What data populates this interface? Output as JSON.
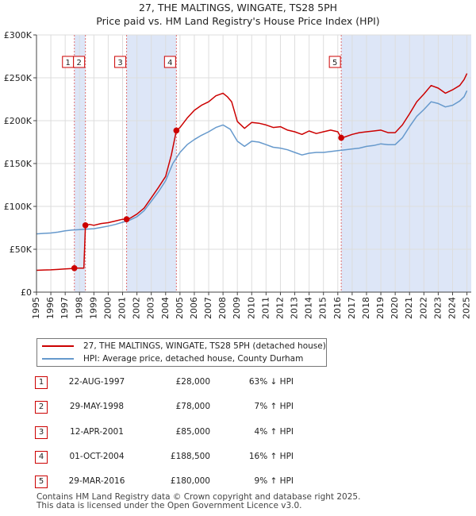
{
  "chart_data": {
    "type": "line",
    "title": "27, THE MALTINGS, WINGATE, TS28 5PH",
    "subtitle": "Price paid vs. HM Land Registry's House Price Index (HPI)",
    "xlim": [
      1995,
      2025.3
    ],
    "ylim": [
      0,
      300000
    ],
    "y_ticks": [
      0,
      50000,
      100000,
      150000,
      200000,
      250000,
      300000
    ],
    "y_tick_labels": [
      "£0",
      "£50K",
      "£100K",
      "£150K",
      "£200K",
      "£250K",
      "£300K"
    ],
    "x_ticks": [
      1995,
      1996,
      1997,
      1998,
      1999,
      2000,
      2001,
      2002,
      2003,
      2004,
      2005,
      2006,
      2007,
      2008,
      2009,
      2010,
      2011,
      2012,
      2013,
      2014,
      2015,
      2016,
      2017,
      2018,
      2019,
      2020,
      2021,
      2022,
      2023,
      2024,
      2025
    ],
    "x_tick_labels": [
      "1995",
      "1996",
      "1997",
      "1998",
      "1999",
      "2000",
      "2001",
      "2002",
      "2003",
      "2004",
      "2005",
      "2006",
      "2007",
      "2008",
      "2009",
      "2010",
      "2011",
      "2012",
      "2013",
      "2014",
      "2015",
      "2016",
      "2017",
      "2018",
      "2019",
      "2020",
      "2021",
      "2022",
      "2023",
      "2024",
      "2025"
    ],
    "grid": true,
    "series": [
      {
        "name": "27, THE MALTINGS, WINGATE, TS28 5PH (detached house)",
        "color": "#cc0000",
        "points": [
          [
            1995.0,
            25500
          ],
          [
            1995.5,
            25800
          ],
          [
            1996.0,
            26000
          ],
          [
            1996.5,
            26500
          ],
          [
            1997.0,
            27000
          ],
          [
            1997.5,
            27500
          ],
          [
            1997.64,
            28000
          ],
          [
            1998.0,
            28000
          ],
          [
            1998.3,
            28000
          ],
          [
            1998.41,
            78000
          ],
          [
            1998.7,
            79000
          ],
          [
            1999.0,
            78000
          ],
          [
            1999.5,
            80000
          ],
          [
            2000.0,
            81000
          ],
          [
            2000.5,
            83000
          ],
          [
            2001.0,
            85000
          ],
          [
            2001.28,
            85000
          ],
          [
            2001.5,
            86000
          ],
          [
            2002.0,
            91000
          ],
          [
            2002.5,
            98000
          ],
          [
            2003.0,
            110000
          ],
          [
            2003.5,
            122000
          ],
          [
            2004.0,
            135000
          ],
          [
            2004.4,
            160000
          ],
          [
            2004.75,
            188500
          ],
          [
            2005.0,
            192000
          ],
          [
            2005.5,
            203000
          ],
          [
            2006.0,
            212000
          ],
          [
            2006.5,
            218000
          ],
          [
            2007.0,
            222000
          ],
          [
            2007.5,
            229000
          ],
          [
            2008.0,
            232000
          ],
          [
            2008.3,
            228000
          ],
          [
            2008.6,
            222000
          ],
          [
            2009.0,
            199000
          ],
          [
            2009.5,
            191000
          ],
          [
            2010.0,
            198000
          ],
          [
            2010.5,
            197000
          ],
          [
            2011.0,
            195000
          ],
          [
            2011.5,
            192000
          ],
          [
            2012.0,
            193000
          ],
          [
            2012.5,
            189000
          ],
          [
            2013.0,
            187000
          ],
          [
            2013.5,
            184000
          ],
          [
            2014.0,
            188000
          ],
          [
            2014.5,
            185000
          ],
          [
            2015.0,
            187000
          ],
          [
            2015.5,
            189000
          ],
          [
            2016.0,
            187000
          ],
          [
            2016.24,
            180000
          ],
          [
            2016.5,
            181000
          ],
          [
            2017.0,
            184000
          ],
          [
            2017.5,
            186000
          ],
          [
            2018.0,
            187000
          ],
          [
            2018.5,
            188000
          ],
          [
            2019.0,
            189000
          ],
          [
            2019.5,
            186000
          ],
          [
            2020.0,
            186000
          ],
          [
            2020.5,
            195000
          ],
          [
            2021.0,
            208000
          ],
          [
            2021.5,
            222000
          ],
          [
            2022.0,
            231000
          ],
          [
            2022.5,
            241000
          ],
          [
            2023.0,
            238000
          ],
          [
            2023.5,
            232000
          ],
          [
            2024.0,
            236000
          ],
          [
            2024.5,
            241000
          ],
          [
            2024.8,
            248000
          ],
          [
            2025.0,
            255000
          ]
        ]
      },
      {
        "name": "HPI: Average price, detached house, County Durham",
        "color": "#6699cc",
        "points": [
          [
            1995.0,
            68000
          ],
          [
            1995.5,
            68500
          ],
          [
            1996.0,
            69000
          ],
          [
            1996.5,
            70000
          ],
          [
            1997.0,
            71500
          ],
          [
            1997.5,
            72500
          ],
          [
            1998.0,
            73000
          ],
          [
            1998.5,
            73500
          ],
          [
            1999.0,
            74000
          ],
          [
            1999.5,
            75500
          ],
          [
            2000.0,
            77000
          ],
          [
            2000.5,
            79000
          ],
          [
            2001.0,
            81500
          ],
          [
            2001.5,
            84000
          ],
          [
            2002.0,
            88000
          ],
          [
            2002.5,
            95000
          ],
          [
            2003.0,
            106000
          ],
          [
            2003.5,
            117000
          ],
          [
            2004.0,
            130000
          ],
          [
            2004.5,
            150000
          ],
          [
            2005.0,
            163000
          ],
          [
            2005.5,
            172000
          ],
          [
            2006.0,
            178000
          ],
          [
            2006.5,
            183000
          ],
          [
            2007.0,
            187000
          ],
          [
            2007.5,
            192000
          ],
          [
            2008.0,
            195000
          ],
          [
            2008.5,
            190000
          ],
          [
            2009.0,
            176000
          ],
          [
            2009.5,
            170000
          ],
          [
            2010.0,
            176000
          ],
          [
            2010.5,
            175000
          ],
          [
            2011.0,
            172000
          ],
          [
            2011.5,
            169000
          ],
          [
            2012.0,
            168000
          ],
          [
            2012.5,
            166000
          ],
          [
            2013.0,
            163000
          ],
          [
            2013.5,
            160000
          ],
          [
            2014.0,
            162000
          ],
          [
            2014.5,
            163000
          ],
          [
            2015.0,
            163000
          ],
          [
            2015.5,
            164000
          ],
          [
            2016.0,
            165000
          ],
          [
            2016.5,
            166000
          ],
          [
            2017.0,
            167000
          ],
          [
            2017.5,
            168000
          ],
          [
            2018.0,
            170000
          ],
          [
            2018.5,
            171000
          ],
          [
            2019.0,
            173000
          ],
          [
            2019.5,
            172000
          ],
          [
            2020.0,
            172000
          ],
          [
            2020.5,
            180000
          ],
          [
            2021.0,
            193000
          ],
          [
            2021.5,
            205000
          ],
          [
            2022.0,
            213000
          ],
          [
            2022.5,
            222000
          ],
          [
            2023.0,
            220000
          ],
          [
            2023.5,
            216000
          ],
          [
            2024.0,
            218000
          ],
          [
            2024.5,
            223000
          ],
          [
            2024.8,
            228000
          ],
          [
            2025.0,
            235000
          ]
        ]
      }
    ],
    "sales": [
      {
        "label": "1",
        "x": 1997.64,
        "y": 28000
      },
      {
        "label": "2",
        "x": 1998.41,
        "y": 78000
      },
      {
        "label": "3",
        "x": 2001.28,
        "y": 85000
      },
      {
        "label": "4",
        "x": 2004.75,
        "y": 188500
      },
      {
        "label": "5",
        "x": 2016.24,
        "y": 180000
      }
    ],
    "shaded_ranges": [
      [
        1997.64,
        1998.41
      ],
      [
        2001.28,
        2004.75
      ],
      [
        2016.24,
        2025.3
      ]
    ],
    "colors": {
      "sale_line": "#cc0000",
      "hpi_line": "#6699cc",
      "shade": "#dde6f7",
      "grid": "#dddddd",
      "vline": "#e07070"
    }
  },
  "legend": {
    "series_label": "27, THE MALTINGS, WINGATE, TS28 5PH (detached house)",
    "hpi_label": "HPI: Average price, detached house, County Durham"
  },
  "transactions": [
    {
      "num": "1",
      "date": "22-AUG-1997",
      "price": "£28,000",
      "hpi": "63% ↓ HPI"
    },
    {
      "num": "2",
      "date": "29-MAY-1998",
      "price": "£78,000",
      "hpi": "7% ↑ HPI"
    },
    {
      "num": "3",
      "date": "12-APR-2001",
      "price": "£85,000",
      "hpi": "4% ↑ HPI"
    },
    {
      "num": "4",
      "date": "01-OCT-2004",
      "price": "£188,500",
      "hpi": "16% ↑ HPI"
    },
    {
      "num": "5",
      "date": "29-MAR-2016",
      "price": "£180,000",
      "hpi": "9% ↑ HPI"
    }
  ],
  "footer": {
    "line1": "Contains HM Land Registry data © Crown copyright and database right 2025.",
    "line2": "This data is licensed under the Open Government Licence v3.0."
  }
}
